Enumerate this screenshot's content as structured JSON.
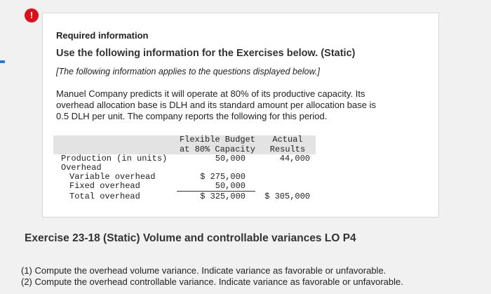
{
  "info": {
    "heading": "Required information",
    "title": "Use the following information for the Exercises below. (Static)",
    "note": "[The following information applies to the questions displayed below.]",
    "body": [
      "Manuel Company predicts it will operate at 80% of its productive capacity. Its",
      "overhead allocation base is DLH and its standard amount per allocation base is",
      "0.5 DLH per unit. The company reports the following for this period."
    ]
  },
  "table": {
    "budget_header": [
      "Flexible Budget",
      "at 80% Capacity"
    ],
    "actual_header": [
      "Actual",
      "Results"
    ],
    "rows": [
      {
        "label": "Production (in units)",
        "budget": "50,000",
        "actual": "44,000"
      },
      {
        "label": "Overhead"
      },
      {
        "label": "Variable overhead",
        "budget": "$ 275,000"
      },
      {
        "label": "Fixed overhead",
        "budget": "50,000"
      },
      {
        "label": "Total overhead",
        "budget": "$ 325,000",
        "actual": "$ 305,000"
      }
    ]
  },
  "exercise": {
    "title": "Exercise 23-18 (Static) Volume and controllable variances LO P4",
    "questions": [
      "(1) Compute the overhead volume variance. Indicate variance as favorable or unfavorable.",
      "(2) Compute the overhead controllable variance. Indicate variance as favorable or unfavorable."
    ]
  }
}
